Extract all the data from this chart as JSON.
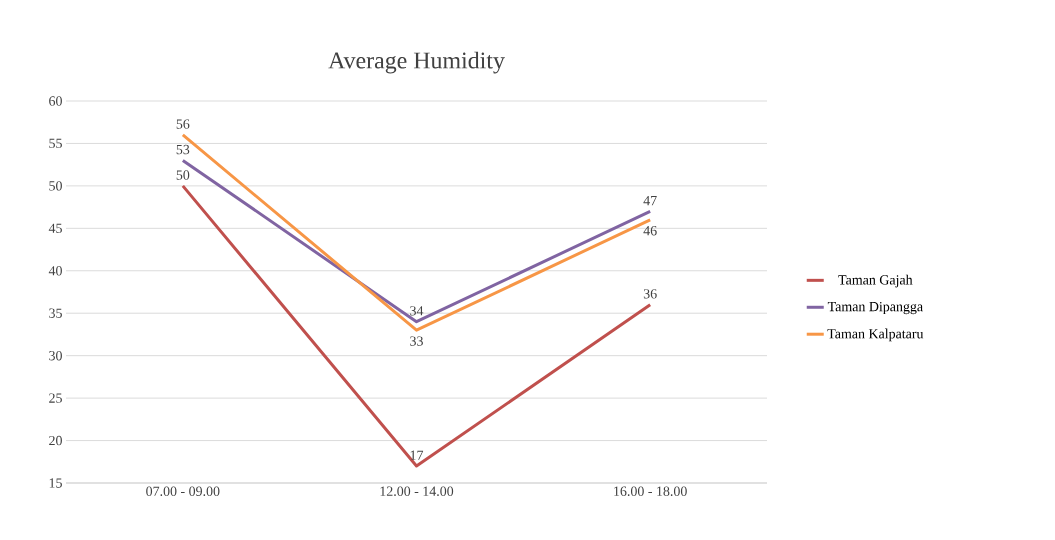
{
  "chart_data": {
    "type": "line",
    "title": "Average Humidity",
    "categories": [
      "07.00 - 09.00",
      "12.00 - 14.00",
      "16.00 - 18.00"
    ],
    "series": [
      {
        "name": "Taman Gajah",
        "color": "#c0504d",
        "values": [
          50,
          17,
          36
        ]
      },
      {
        "name": "Taman Dipangga",
        "color": "#8064a2",
        "values": [
          53,
          34,
          47
        ]
      },
      {
        "name": "Taman Kalpataru",
        "color": "#f79646",
        "values": [
          56,
          33,
          46
        ]
      }
    ],
    "ylim": [
      15,
      60
    ],
    "yticks": [
      15,
      20,
      25,
      30,
      35,
      40,
      45,
      50,
      55,
      60
    ],
    "grid": "y",
    "legend": "right",
    "data_labels": true,
    "marker": "none",
    "line_style": "solid"
  }
}
